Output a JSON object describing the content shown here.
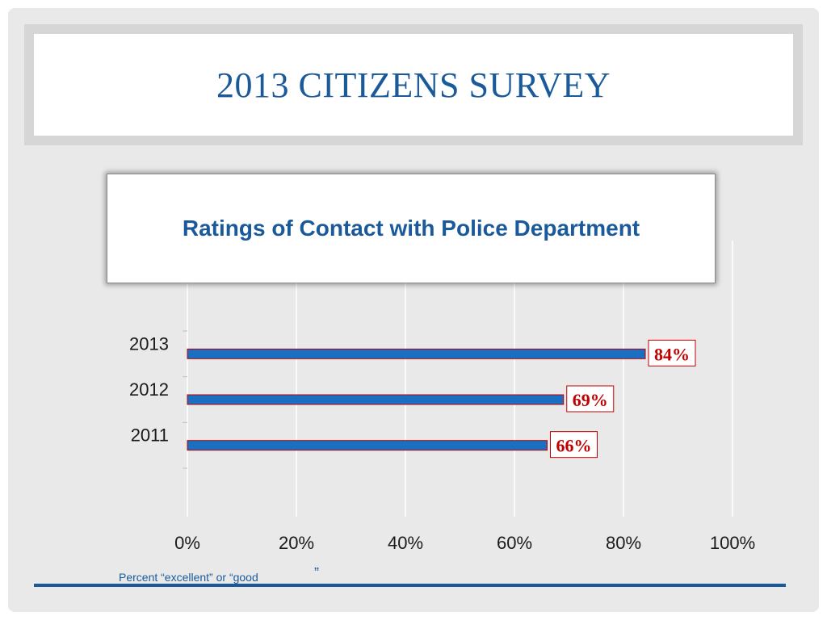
{
  "title": "2013 CITIZENS SURVEY",
  "footnote": "Percent “excellent” or “good",
  "footnote_mark": "”",
  "colors": {
    "title": "#1b5a9a",
    "bar_fill": "#1b6fc2",
    "bar_border": "#c00000",
    "label_text": "#c00000",
    "rule": "#1b5a9a"
  },
  "chart_data": {
    "type": "bar",
    "orientation": "horizontal",
    "title": "Ratings of Contact with Police Department",
    "categories": [
      "2013",
      "2012",
      "2011"
    ],
    "values": [
      84,
      69,
      66
    ],
    "data_labels": [
      "84%",
      "69%",
      "66%"
    ],
    "x_ticks": [
      "0%",
      "20%",
      "40%",
      "60%",
      "80%",
      "100%"
    ],
    "xlim": [
      0,
      100
    ],
    "grid": true,
    "xlabel": "Percent “excellent” or “good”",
    "ylabel": ""
  }
}
